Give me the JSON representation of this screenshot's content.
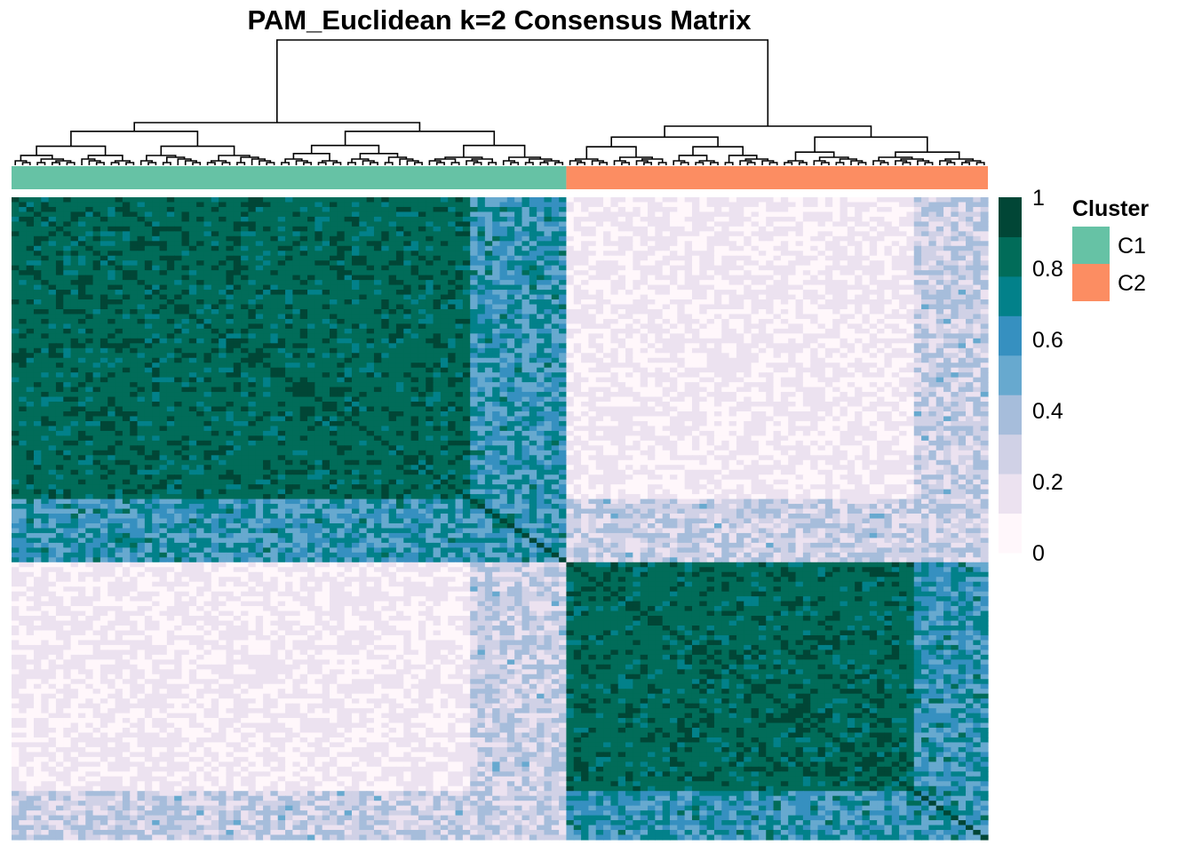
{
  "chart_data": {
    "type": "heatmap",
    "title": "PAM_Euclidean k=2 Consensus Matrix",
    "n_samples": 132,
    "clusters": [
      {
        "name": "C1",
        "size": 75,
        "color": "#66C2A5"
      },
      {
        "name": "C2",
        "size": 57,
        "color": "#FC8D62"
      }
    ],
    "colorbar": {
      "ticks": [
        1,
        0.8,
        0.6,
        0.4,
        0.2,
        0
      ],
      "tick_labels": [
        "1",
        "0.8",
        "0.6",
        "0.4",
        "0.2",
        "0"
      ],
      "range": [
        0,
        1
      ],
      "colors": [
        "#FFF7FB",
        "#ECE2F0",
        "#D0D1E6",
        "#A6BDDB",
        "#67A9CF",
        "#3690C0",
        "#02818A",
        "#016C59",
        "#014636"
      ]
    },
    "legend": {
      "title": "Cluster",
      "items": [
        {
          "label": "C1",
          "color": "#66C2A5"
        },
        {
          "label": "C2",
          "color": "#FC8D62"
        }
      ]
    },
    "block_structure": {
      "within_core": 0.92,
      "within_fringe": 0.62,
      "between_core": 0.04,
      "between_fringe": 0.3,
      "core_fraction_C1": 0.83,
      "core_fraction_C2": 0.82
    }
  }
}
